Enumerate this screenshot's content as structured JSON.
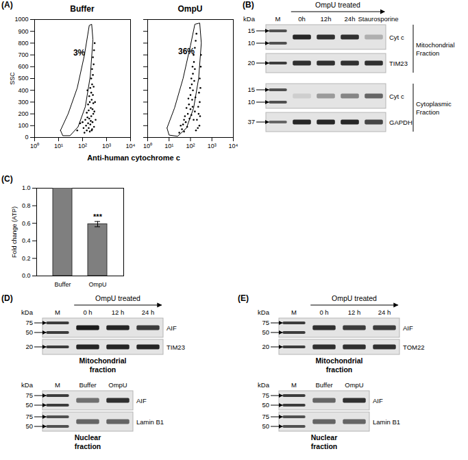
{
  "chart_data": [
    {
      "type": "scatter",
      "panel_label": "(A)",
      "title": "Buffer",
      "xlabel": "Anti-human cytochrome c",
      "ylabel": "SSC",
      "log": "x",
      "xlim": [
        1,
        10000
      ],
      "xticks": [
        {
          "value": 1,
          "label": "10⁰"
        },
        {
          "value": 10,
          "label": "10¹"
        },
        {
          "value": 100,
          "label": "10²"
        },
        {
          "value": 1000,
          "label": "10³"
        },
        {
          "value": 10000,
          "label": "10⁴"
        }
      ],
      "ylim": [
        0,
        1000
      ],
      "yticks": [
        0,
        100,
        200,
        300,
        400,
        500,
        600,
        700,
        800,
        900,
        1000
      ],
      "color": "#000000",
      "marker": "dot",
      "x": [
        120,
        150,
        180,
        200,
        250,
        140,
        170,
        210,
        260,
        300,
        130,
        160,
        190,
        230,
        280,
        150,
        180,
        220,
        260,
        310,
        170,
        200,
        240,
        280,
        190,
        230,
        270,
        210,
        250,
        290,
        230,
        270,
        250,
        290,
        270,
        300,
        320,
        110,
        100,
        80,
        350,
        330,
        160,
        60,
        220,
        240
      ],
      "y": [
        40,
        60,
        80,
        50,
        70,
        100,
        120,
        110,
        130,
        90,
        150,
        170,
        160,
        180,
        200,
        210,
        230,
        250,
        240,
        220,
        280,
        300,
        320,
        290,
        350,
        380,
        360,
        420,
        450,
        430,
        500,
        530,
        580,
        620,
        680,
        740,
        800,
        80,
        130,
        120,
        150,
        300,
        400,
        60,
        140,
        60
      ],
      "gate": {
        "label": "3%",
        "x": [
          12,
          25,
          60,
          120,
          190,
          240,
          270,
          210,
          130,
          65,
          30,
          15
        ],
        "y": [
          60,
          200,
          420,
          700,
          950,
          960,
          830,
          520,
          260,
          90,
          15,
          15
        ]
      }
    },
    {
      "type": "scatter",
      "title": "OmpU",
      "log": "x",
      "xlim": [
        1,
        10000
      ],
      "xticks": [
        {
          "value": 1,
          "label": "10⁰"
        },
        {
          "value": 10,
          "label": "10¹"
        },
        {
          "value": 100,
          "label": "10²"
        },
        {
          "value": 1000,
          "label": "10³"
        },
        {
          "value": 10000,
          "label": "10⁴"
        }
      ],
      "ylim": [
        0,
        1000
      ],
      "yticks": [
        0,
        100,
        200,
        300,
        400,
        500,
        600,
        700,
        800,
        900,
        1000
      ],
      "tick_labels": "x",
      "color": "#000000",
      "marker": "dot",
      "x": [
        180,
        220,
        260,
        200,
        240,
        280,
        230,
        270,
        250,
        290,
        270,
        300,
        310,
        30,
        40,
        50,
        45,
        60,
        70,
        55,
        75,
        90,
        65,
        85,
        100,
        80,
        100,
        120,
        95,
        115,
        130,
        110,
        130,
        150,
        125,
        145,
        160,
        140,
        160,
        175,
        190,
        35,
        50,
        110,
        125,
        140,
        160,
        170
      ],
      "y": [
        60,
        80,
        100,
        150,
        200,
        180,
        260,
        300,
        380,
        420,
        500,
        600,
        700,
        40,
        70,
        50,
        110,
        130,
        90,
        180,
        200,
        160,
        250,
        280,
        240,
        330,
        360,
        320,
        420,
        450,
        400,
        500,
        540,
        480,
        600,
        640,
        580,
        700,
        760,
        820,
        880,
        100,
        150,
        190,
        260,
        150,
        220,
        340
      ],
      "gate": {
        "label": "36%",
        "x": [
          8,
          18,
          45,
          100,
          160,
          270,
          320,
          240,
          140,
          65,
          25,
          10
        ],
        "y": [
          80,
          250,
          500,
          780,
          960,
          970,
          800,
          500,
          250,
          80,
          10,
          20
        ]
      }
    },
    {
      "type": "bar",
      "panel_label": "(C)",
      "ylabel": "Fold change (ATP)",
      "categories": [
        "Buffer",
        "OmpU"
      ],
      "values": [
        1.0,
        0.59
      ],
      "errors": [
        null,
        0.03
      ],
      "ylim": [
        0,
        1
      ],
      "yticks": [
        {
          "value": 0,
          "label": "0.0"
        },
        {
          "value": 0.2,
          "label": "0.2"
        },
        {
          "value": 0.4,
          "label": "0.4"
        },
        {
          "value": 0.6,
          "label": "0.6"
        },
        {
          "value": 0.8,
          "label": "0.8"
        },
        {
          "value": 1,
          "label": "1.0"
        }
      ],
      "color": "#7f7f7f",
      "annotations": [
        {
          "category": "OmpU",
          "text": "***"
        }
      ]
    }
  ],
  "blots": [
    {
      "panel_label": "(B)",
      "blots": [
        {
          "header": "OmpU treated",
          "unit": "kDa",
          "lanes": [
            "M",
            "0h",
            "12h",
            "24h",
            "Staurosporine"
          ],
          "groups": [
            {
              "label": [
                "Mitochondrial",
                "Fraction"
              ],
              "rows": [
                {
                  "protein": "Cyt c",
                  "markers": [
                    15,
                    10
                  ],
                  "intensities": [
                    0.7,
                    0.9,
                    0.85,
                    0.85,
                    0.25
                  ]
                },
                {
                  "protein": "TIM23",
                  "markers": [
                    20
                  ],
                  "intensities": [
                    0.8,
                    0.85,
                    0.85,
                    0.85,
                    0.85
                  ]
                }
              ]
            },
            {
              "label": [
                "Cytoplasmic",
                "Fraction"
              ],
              "rows": [
                {
                  "protein": "Cyt c",
                  "markers": [
                    15,
                    10
                  ],
                  "intensities": [
                    0.7,
                    0.1,
                    0.35,
                    0.45,
                    0.6
                  ]
                },
                {
                  "protein": "GAPDH",
                  "markers": [
                    37
                  ],
                  "intensities": [
                    0.6,
                    0.9,
                    0.9,
                    0.9,
                    0.75
                  ]
                }
              ]
            }
          ]
        }
      ]
    },
    {
      "panel_label": "(D)",
      "blots": [
        {
          "header": "OmpU treated",
          "unit": "kDa",
          "lanes": [
            "M",
            "0 h",
            "12 h",
            "24 h"
          ],
          "groups": [
            {
              "rows": [
                {
                  "protein": "AIF",
                  "markers": [
                    75,
                    50
                  ],
                  "intensities": [
                    0.8,
                    0.95,
                    0.9,
                    0.8
                  ]
                },
                {
                  "protein": "TIM23",
                  "markers": [
                    20
                  ],
                  "intensities": [
                    0.8,
                    0.9,
                    0.9,
                    0.9
                  ]
                }
              ]
            }
          ],
          "caption": [
            "Mitochondrial",
            "fraction"
          ]
        },
        {
          "unit": "kDa",
          "lanes": [
            "M",
            "Buffer",
            "OmpU"
          ],
          "groups": [
            {
              "rows": [
                {
                  "protein": "AIF",
                  "markers": [
                    75,
                    50
                  ],
                  "intensities": [
                    0.8,
                    0.55,
                    0.85
                  ]
                },
                {
                  "protein": "Lamin B1",
                  "markers": [
                    75,
                    50
                  ],
                  "intensities": [
                    0.7,
                    0.6,
                    0.6
                  ]
                }
              ]
            }
          ],
          "caption": [
            "Nuclear",
            "fraction"
          ]
        }
      ]
    },
    {
      "panel_label": "(E)",
      "blots": [
        {
          "header": "OmpU treated",
          "unit": "kDa",
          "lanes": [
            "M",
            "0 h",
            "12 h",
            "24 h"
          ],
          "groups": [
            {
              "rows": [
                {
                  "protein": "AIF",
                  "markers": [
                    75,
                    50
                  ],
                  "intensities": [
                    0.8,
                    0.85,
                    0.8,
                    0.8
                  ]
                },
                {
                  "protein": "TOM22",
                  "markers": [
                    20
                  ],
                  "intensities": [
                    0.8,
                    0.85,
                    0.85,
                    0.85
                  ]
                }
              ]
            }
          ],
          "caption": [
            "Mitochondrial",
            "fraction"
          ]
        },
        {
          "unit": "kDa",
          "lanes": [
            "M",
            "Buffer",
            "OmpU"
          ],
          "groups": [
            {
              "rows": [
                {
                  "protein": "AIF",
                  "markers": [
                    75,
                    50
                  ],
                  "intensities": [
                    0.8,
                    0.6,
                    0.85
                  ]
                },
                {
                  "protein": "Lamin B1",
                  "markers": [
                    75,
                    50
                  ],
                  "intensities": [
                    0.7,
                    0.6,
                    0.6
                  ]
                }
              ]
            }
          ],
          "caption": [
            "Nuclear",
            "fraction"
          ]
        }
      ]
    }
  ]
}
